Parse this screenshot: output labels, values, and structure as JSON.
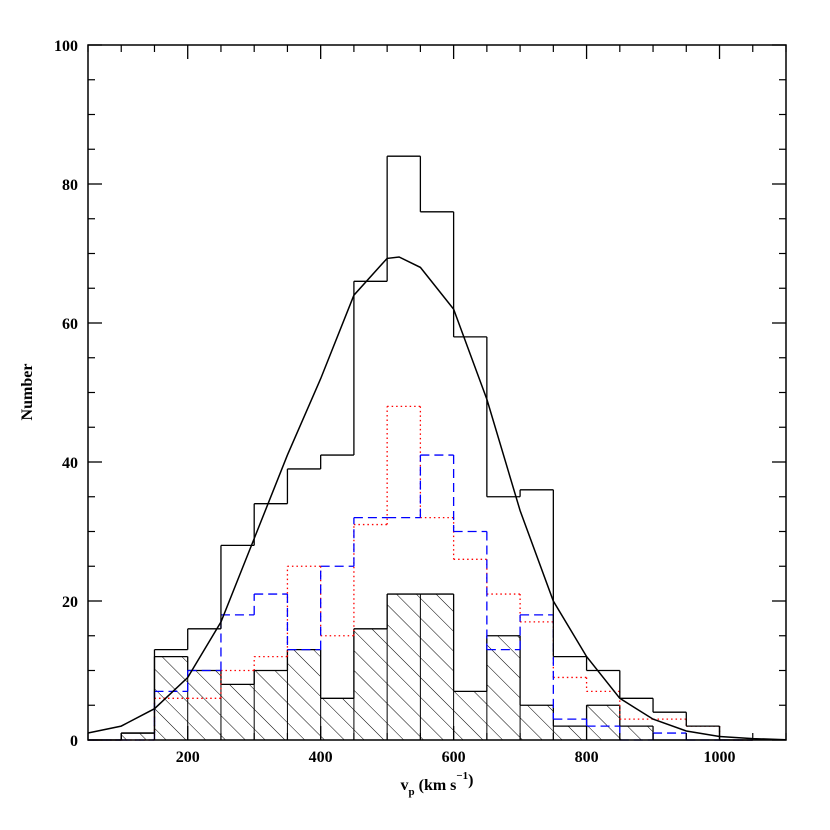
{
  "chart_data": {
    "type": "histogram",
    "xlabel": [
      "v",
      "p",
      " (km s",
      "−1",
      ")"
    ],
    "ylabel": "Number",
    "bins": [
      50,
      100,
      150,
      200,
      250,
      300,
      350,
      400,
      450,
      500,
      550,
      600,
      650,
      700,
      750,
      800,
      850,
      900,
      950,
      1000,
      1050
    ],
    "series": [
      {
        "color": "#000000",
        "style": "hatched",
        "values": [
          0,
          1,
          12,
          10,
          8,
          10,
          13,
          6,
          16,
          21,
          21,
          7,
          15,
          5,
          2,
          5,
          2,
          0,
          0,
          0
        ]
      },
      {
        "color": "#ff0000",
        "style": "dotted",
        "values": [
          0,
          0,
          6,
          6,
          10,
          12,
          25,
          15,
          31,
          48,
          32,
          26,
          21,
          17,
          9,
          7,
          3,
          3,
          2,
          0
        ]
      },
      {
        "color": "#0000ff",
        "style": "dashed",
        "values": [
          0,
          0,
          7,
          10,
          18,
          21,
          13,
          25,
          32,
          32,
          41,
          30,
          13,
          18,
          3,
          2,
          0,
          1,
          0,
          0
        ]
      },
      {
        "color": "#000000",
        "style": "solid",
        "values": [
          0,
          1,
          13,
          16,
          28,
          34,
          39,
          41,
          66,
          84,
          76,
          58,
          35,
          36,
          12,
          10,
          6,
          4,
          2,
          0
        ]
      }
    ],
    "curve": {
      "color": "#000000",
      "x": [
        50,
        100,
        150,
        200,
        250,
        300,
        350,
        400,
        450,
        500,
        518,
        550,
        600,
        650,
        700,
        750,
        800,
        850,
        900,
        950,
        1000,
        1050,
        1100
      ],
      "y": [
        1,
        2,
        4.5,
        9,
        17,
        29,
        41,
        52,
        64,
        69.3,
        69.5,
        68,
        62,
        49,
        33,
        20,
        12,
        6,
        3,
        1.3,
        0.5,
        0.2,
        0.05
      ]
    },
    "xlim": [
      50,
      1100
    ],
    "ylim": [
      0,
      100
    ],
    "xticks": [
      200,
      400,
      600,
      800,
      1000
    ],
    "yticks": [
      0,
      20,
      40,
      60,
      80,
      100
    ]
  }
}
